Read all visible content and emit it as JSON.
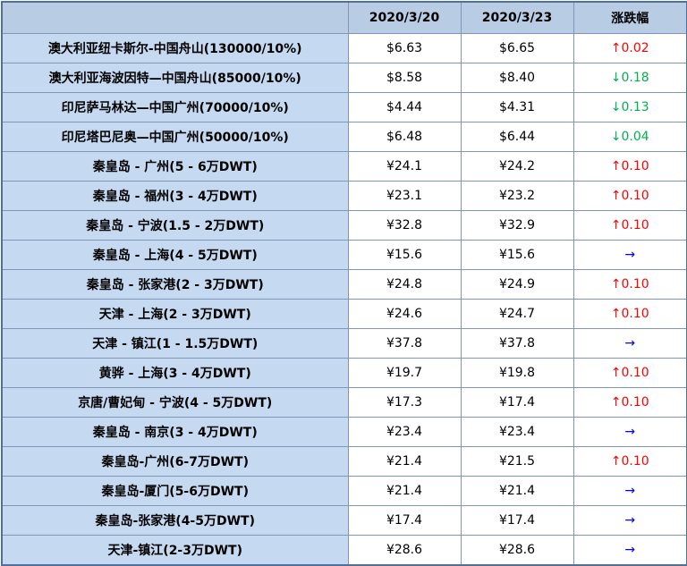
{
  "table": {
    "header": [
      "",
      "2020/3/20",
      "2020/3/23",
      "涨跌幅"
    ],
    "rows": [
      [
        "澳大利亚纽卡斯尔-中国舟山(130000/10%)",
        "$6.63",
        "$6.65",
        "↑0.02"
      ],
      [
        "澳大利亚海波因特—中国舟山(85000/10%)",
        "$8.58",
        "$8.40",
        "↓0.18"
      ],
      [
        "印尼萨马林达—中国广州(70000/10%)",
        "$4.44",
        "$4.31",
        "↓0.13"
      ],
      [
        "印尼塔巴尼奥—中国广州(50000/10%)",
        "$6.48",
        "$6.44",
        "↓0.04"
      ],
      [
        "秦皇岛 - 广州(5 - 6万DWT)",
        "¥24.1",
        "¥24.2",
        "↑0.10"
      ],
      [
        "秦皇岛 - 福州(3 - 4万DWT)",
        "¥23.1",
        "¥23.2",
        "↑0.10"
      ],
      [
        "秦皇岛 - 宁波(1.5 - 2万DWT)",
        "¥32.8",
        "¥32.9",
        "↑0.10"
      ],
      [
        "秦皇岛 - 上海(4 - 5万DWT)",
        "¥15.6",
        "¥15.6",
        "→"
      ],
      [
        "秦皇岛 - 张家港(2 - 3万DWT)",
        "¥24.8",
        "¥24.9",
        "↑0.10"
      ],
      [
        "天津 - 上海(2 - 3万DWT)",
        "¥24.6",
        "¥24.7",
        "↑0.10"
      ],
      [
        "天津 - 镇江(1 - 1.5万DWT)",
        "¥37.8",
        "¥37.8",
        "→"
      ],
      [
        "黄骅 - 上海(3 - 4万DWT)",
        "¥19.7",
        "¥19.8",
        "↑0.10"
      ],
      [
        "京唐/曹妃甸 - 宁波(4 - 5万DWT)",
        "¥17.3",
        "¥17.4",
        "↑0.10"
      ],
      [
        "秦皇岛 - 南京(3 - 4万DWT)",
        "¥23.4",
        "¥23.4",
        "→"
      ],
      [
        "秦皇岛-广州(6-7万DWT)",
        "¥21.4",
        "¥21.5",
        "↑0.10"
      ],
      [
        "秦皇岛-厦门(5-6万DWT)",
        "¥21.4",
        "¥21.4",
        "→"
      ],
      [
        "秦皇岛-张家港(4-5万DWT)",
        "¥17.4",
        "¥17.4",
        "→"
      ],
      [
        "天津-镇江(2-3万DWT)",
        "¥28.6",
        "¥28.6",
        "→"
      ]
    ],
    "change_colors": [
      "#ff0000",
      "#00b050",
      "#00b050",
      "#00b050",
      "#ff0000",
      "#ff0000",
      "#ff0000",
      "#0000ff",
      "#ff0000",
      "#ff0000",
      "#0000ff",
      "#ff0000",
      "#ff0000",
      "#0000ff",
      "#ff0000",
      "#0000ff",
      "#0000ff",
      "#0000ff"
    ]
  }
}
